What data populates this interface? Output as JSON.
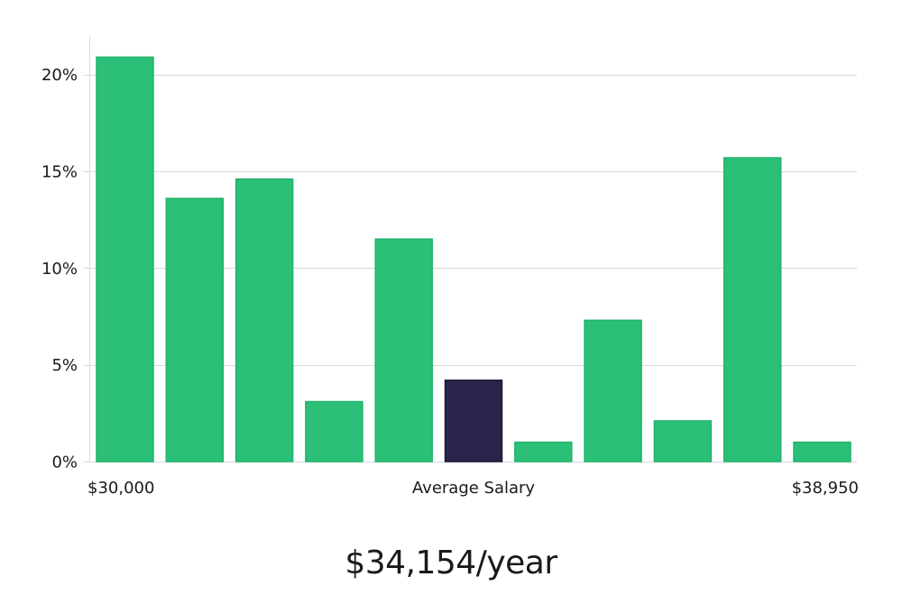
{
  "chart_data": {
    "type": "bar",
    "title": "",
    "xlabel": "Average Salary",
    "ylabel": "",
    "x_range_labels": [
      "$30,000",
      "$38,950"
    ],
    "values": [
      20.9,
      13.6,
      14.6,
      3.1,
      11.5,
      4.2,
      1.0,
      7.3,
      2.1,
      15.7,
      1.0
    ],
    "highlight_index": 5,
    "ylim": [
      0,
      22
    ],
    "yticks": [
      0,
      5,
      10,
      15,
      20
    ],
    "ytick_labels": [
      "0%",
      "5%",
      "10%",
      "15%",
      "20%"
    ],
    "grid": true,
    "colors": {
      "bar": "#2bbf78",
      "bar_stroke": "#22b36c",
      "highlight": "#28244a"
    }
  },
  "summary": {
    "salary_text": "$34,154/year"
  }
}
